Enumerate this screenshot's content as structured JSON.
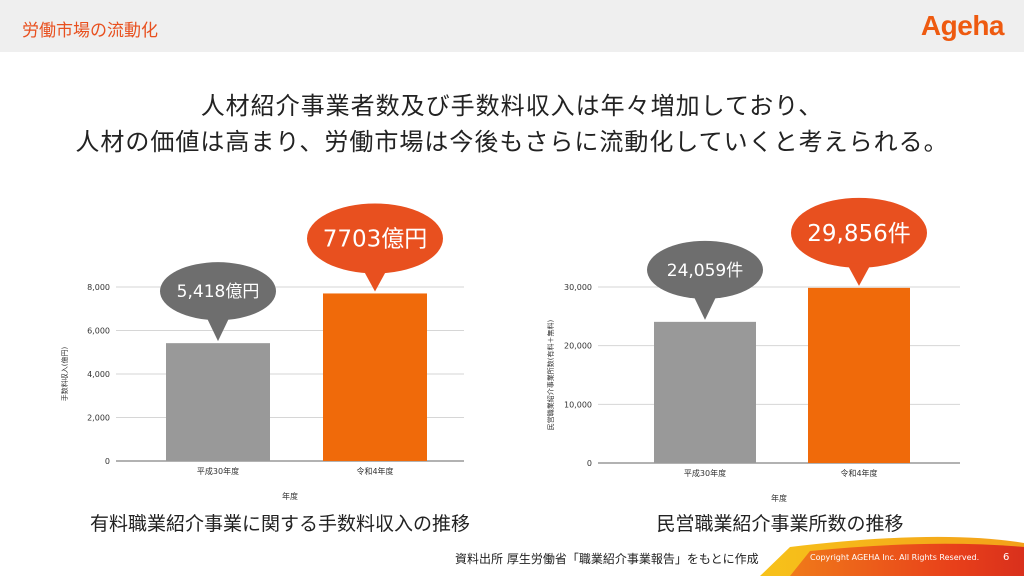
{
  "header": {
    "title": "労働市場の流動化",
    "logo": "Ageha"
  },
  "headline": {
    "line1": "人材紹介事業者数及び手数料収入は年々増加しており、",
    "line2": "人材の価値は高まり、労働市場は今後もさらに流動化していくと考えられる。"
  },
  "colors": {
    "accent": "#f06a0a",
    "gray_bar": "#999999",
    "bubble_orange": "#e8501f",
    "bubble_gray": "#6e6e6e"
  },
  "chart_data": [
    {
      "type": "bar",
      "categories": [
        "平成30年度",
        "令和4年度"
      ],
      "values": [
        5418,
        7703
      ],
      "ylim": [
        0,
        8000
      ],
      "yticks": [
        "0",
        "2,000",
        "4,000",
        "6,000",
        "8,000"
      ],
      "ylabel": "手数料収入(億円)",
      "xlabel": "年度",
      "annotations": [
        "5,418億円",
        "7703億円"
      ],
      "grid": true,
      "caption": "有料職業紹介事業に関する手数料収入の推移"
    },
    {
      "type": "bar",
      "categories": [
        "平成30年度",
        "令和4年度"
      ],
      "values": [
        24059,
        29856
      ],
      "ylim": [
        0,
        30000
      ],
      "yticks": [
        "0",
        "10,000",
        "20,000",
        "30,000"
      ],
      "ylabel": "民営職業紹介事業所数(有料＋無料)",
      "xlabel": "年度",
      "annotations": [
        "24,059件",
        "29,856件"
      ],
      "grid": true,
      "caption": "民営職業紹介事業所数の推移"
    }
  ],
  "footer": {
    "source": "資料出所 厚生労働省「職業紹介事業報告」をもとに作成",
    "copyright": "Copyright AGEHA Inc. All Rights Reserved.",
    "page": "6"
  }
}
